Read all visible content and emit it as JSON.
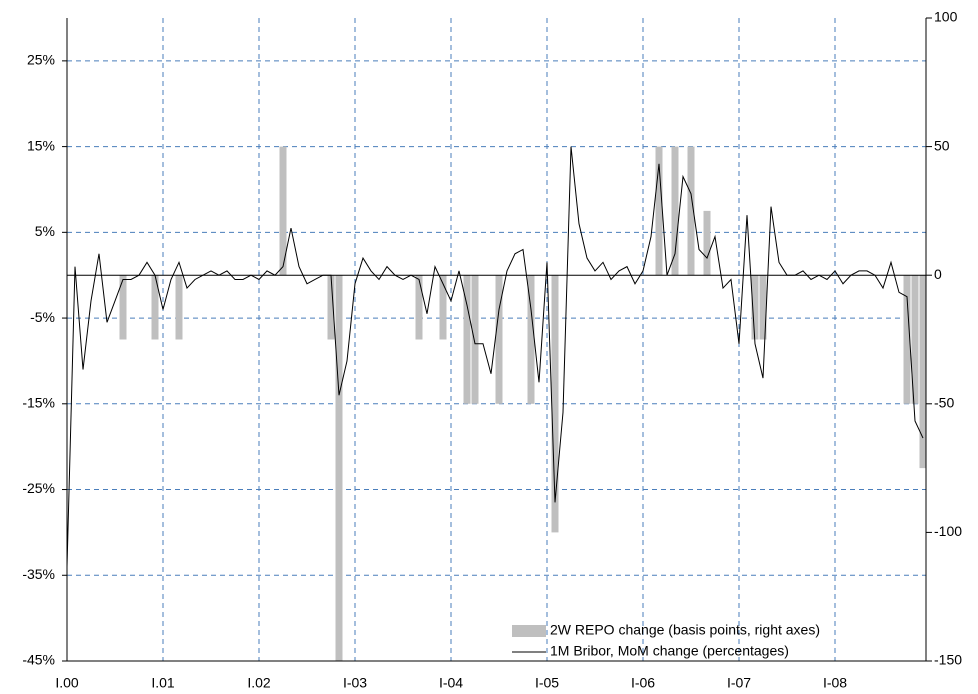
{
  "chart_data": {
    "type": "bar-line",
    "categories": [
      "I.00",
      null,
      null,
      null,
      null,
      null,
      null,
      null,
      null,
      null,
      null,
      null,
      "I.01",
      null,
      null,
      null,
      null,
      null,
      null,
      null,
      null,
      null,
      null,
      null,
      "I.02",
      null,
      null,
      null,
      null,
      null,
      null,
      null,
      null,
      null,
      null,
      null,
      "I-03",
      null,
      null,
      null,
      null,
      null,
      null,
      null,
      null,
      null,
      null,
      null,
      "I-04",
      null,
      null,
      null,
      null,
      null,
      null,
      null,
      null,
      null,
      null,
      null,
      "I-05",
      null,
      null,
      null,
      null,
      null,
      null,
      null,
      null,
      null,
      null,
      null,
      "I-06",
      null,
      null,
      null,
      null,
      null,
      null,
      null,
      null,
      null,
      null,
      null,
      "I-07",
      null,
      null,
      null,
      null,
      null,
      null,
      null,
      null,
      null,
      null,
      null,
      "I-08",
      null,
      null,
      null,
      null,
      null,
      null,
      null,
      null,
      null,
      null,
      null
    ],
    "series": [
      {
        "name": "2W REPO change (basis points, right axes)",
        "type": "bar",
        "axis": "y2",
        "color": "#bfbfbf",
        "values": [
          0,
          0,
          0,
          0,
          0,
          0,
          0,
          -25,
          0,
          0,
          0,
          -25,
          0,
          0,
          -25,
          0,
          0,
          0,
          0,
          0,
          0,
          0,
          0,
          0,
          0,
          0,
          0,
          50,
          0,
          0,
          0,
          0,
          0,
          -25,
          -150,
          0,
          0,
          0,
          0,
          0,
          0,
          0,
          0,
          0,
          -25,
          0,
          0,
          -25,
          0,
          0,
          -50,
          -50,
          0,
          0,
          -50,
          0,
          0,
          0,
          -50,
          0,
          0,
          -100,
          0,
          0,
          0,
          0,
          0,
          0,
          0,
          0,
          0,
          0,
          0,
          0,
          50,
          0,
          50,
          0,
          50,
          0,
          25,
          0,
          0,
          0,
          0,
          0,
          -25,
          -25,
          0,
          0,
          0,
          0,
          0,
          0,
          0,
          0,
          0,
          0,
          0,
          0,
          0,
          0,
          0,
          0,
          0,
          -50,
          -50,
          -75
        ]
      },
      {
        "name": "1M Bribor, MoM change (percentages)",
        "type": "line",
        "axis": "y",
        "color": "#000000",
        "values": [
          -34,
          1,
          -11,
          -3,
          2.5,
          -5.5,
          -3,
          -0.5,
          -0.5,
          0,
          1.5,
          0,
          -4,
          -0.5,
          1.5,
          -1.5,
          -0.5,
          0,
          0.5,
          0,
          0.5,
          -0.5,
          -0.5,
          0,
          -0.5,
          0.5,
          0,
          1,
          5.5,
          1,
          -1,
          -0.5,
          0,
          0,
          -14,
          -10,
          -1,
          2,
          0.5,
          -0.5,
          1,
          0,
          -0.5,
          0,
          -0.5,
          -4.5,
          1,
          -1,
          -3,
          0.5,
          -3.5,
          -8,
          -8,
          -11.5,
          -4,
          0.5,
          2.5,
          3,
          -4,
          -12.5,
          1.5,
          -26.5,
          -16,
          15,
          6,
          2,
          0.5,
          1.5,
          -0.5,
          0.5,
          1,
          -1,
          0.5,
          4.5,
          13,
          0,
          2.5,
          11.5,
          9.5,
          3,
          2,
          4.5,
          -1.5,
          -0.5,
          -8,
          7,
          -8,
          -12,
          8,
          1.5,
          0,
          0,
          0.5,
          -0.5,
          0,
          -0.5,
          0.5,
          -1,
          0,
          0.5,
          0.5,
          0,
          -1.5,
          1.5,
          -2,
          -2.5,
          -17,
          -19
        ]
      }
    ],
    "ylim": [
      -45,
      30
    ],
    "yticks": [
      {
        "value": -45,
        "label": "-45%"
      },
      {
        "value": -35,
        "label": "-35%"
      },
      {
        "value": -25,
        "label": "-25%"
      },
      {
        "value": -15,
        "label": "-15%"
      },
      {
        "value": -5,
        "label": "-5%"
      },
      {
        "value": 5,
        "label": "5%"
      },
      {
        "value": 15,
        "label": "15%"
      },
      {
        "value": 25,
        "label": "25%"
      }
    ],
    "y2lim": [
      -150,
      100
    ],
    "y2ticks": [
      -150,
      -100,
      -50,
      0,
      50,
      100
    ],
    "grid": true,
    "grid_color": "#4a7ebb",
    "legend": "lower right"
  }
}
